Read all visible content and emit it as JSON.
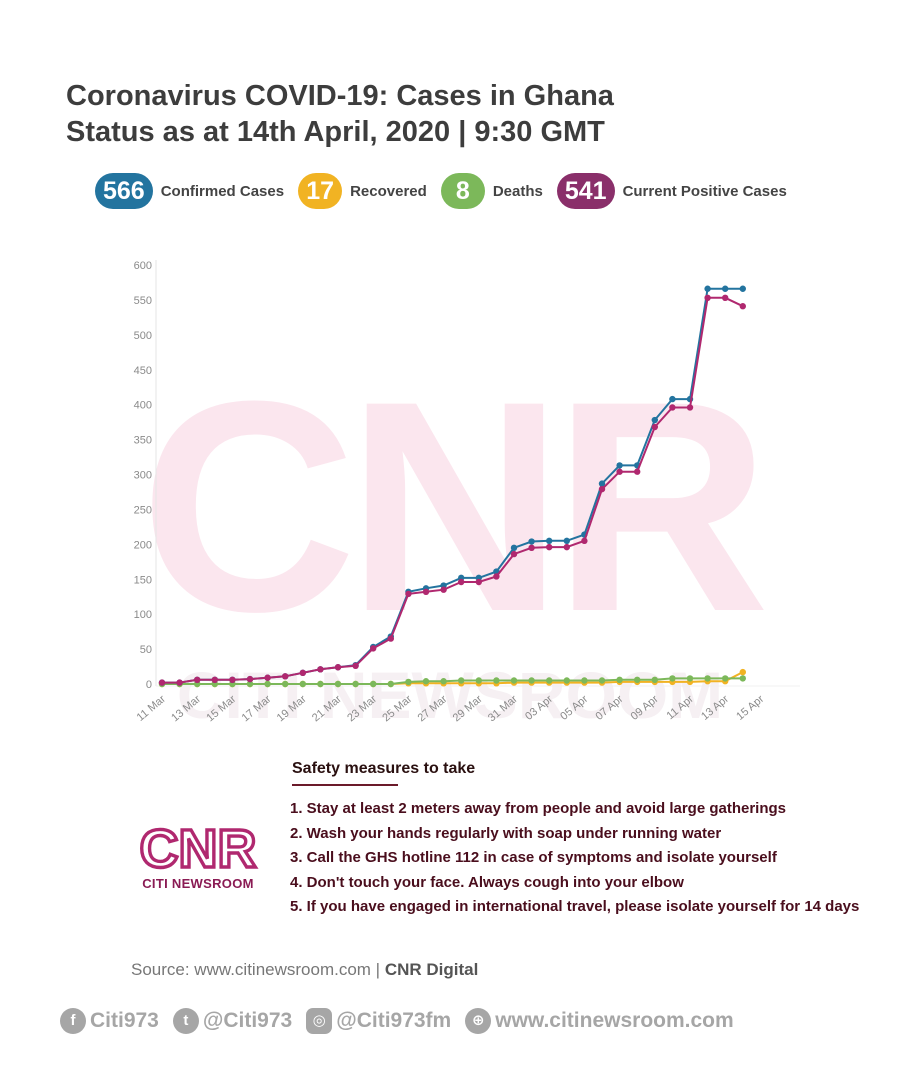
{
  "title_line1": "Coronavirus COVID-19: Cases in Ghana",
  "title_line2": "Status as at 14th April, 2020 | 9:30 GMT",
  "stats": [
    {
      "value": "566",
      "label": "Confirmed Cases",
      "color": "#23749f"
    },
    {
      "value": "17",
      "label": "Recovered",
      "color": "#f1b323"
    },
    {
      "value": "8",
      "label": "Deaths",
      "color": "#7cb85a"
    },
    {
      "value": "541",
      "label": "Current Positive Cases",
      "color": "#8a2f6a"
    }
  ],
  "chart_data": {
    "type": "line",
    "ylim": [
      0,
      600
    ],
    "yticks": [
      0,
      50,
      100,
      150,
      200,
      250,
      300,
      350,
      400,
      450,
      500,
      550,
      600
    ],
    "grid": false,
    "x_day_labels": [
      "11 Mar",
      "13 Mar",
      "15 Mar",
      "17 Mar",
      "19 Mar",
      "21 Mar",
      "23 Mar",
      "25 Mar",
      "27 Mar",
      "29 Mar",
      "31 Mar",
      "03 Apr",
      "05 Apr",
      "07 Apr",
      "09 Apr",
      "11 Apr",
      "13 Apr",
      "15 Apr"
    ],
    "x_label_index": [
      0,
      2,
      4,
      6,
      8,
      10,
      12,
      14,
      16,
      18,
      20,
      22,
      24,
      26,
      28,
      30,
      32,
      34
    ],
    "series": [
      {
        "name": "Confirmed Cases",
        "color": "#23749f",
        "x": [
          0,
          1,
          2,
          3,
          4,
          5,
          6,
          7,
          8,
          9,
          10,
          11,
          12,
          13,
          14,
          15,
          16,
          17,
          18,
          19,
          20,
          21,
          22,
          23,
          24,
          25,
          26,
          27,
          28,
          29,
          30,
          31,
          32,
          33
        ],
        "values": [
          2,
          2,
          6,
          6,
          6,
          7,
          9,
          11,
          16,
          21,
          24,
          27,
          53,
          68,
          132,
          137,
          141,
          152,
          152,
          161,
          195,
          204,
          205,
          205,
          214,
          287,
          313,
          313,
          378,
          408,
          408,
          566,
          566,
          566
        ]
      },
      {
        "name": "Current Positive Cases",
        "color": "#b0286f",
        "x": [
          0,
          1,
          2,
          3,
          4,
          5,
          6,
          7,
          8,
          9,
          10,
          11,
          12,
          13,
          14,
          15,
          16,
          17,
          18,
          19,
          20,
          21,
          22,
          23,
          24,
          25,
          26,
          27,
          28,
          29,
          30,
          31,
          32,
          33
        ],
        "values": [
          2,
          2,
          6,
          6,
          6,
          7,
          9,
          11,
          16,
          21,
          24,
          26,
          51,
          65,
          129,
          132,
          135,
          146,
          146,
          154,
          186,
          195,
          196,
          196,
          205,
          279,
          304,
          304,
          368,
          396,
          396,
          553,
          553,
          541
        ]
      },
      {
        "name": "Recovered",
        "color": "#f1b323",
        "x": [
          0,
          1,
          2,
          3,
          4,
          5,
          6,
          7,
          8,
          9,
          10,
          11,
          12,
          13,
          14,
          15,
          16,
          17,
          18,
          19,
          20,
          21,
          22,
          23,
          24,
          25,
          26,
          27,
          28,
          29,
          30,
          31,
          32,
          33
        ],
        "values": [
          0,
          0,
          0,
          0,
          0,
          0,
          0,
          0,
          0,
          0,
          0,
          0,
          0,
          0,
          1,
          1,
          1,
          1,
          1,
          1,
          2,
          2,
          2,
          2,
          2,
          2,
          3,
          3,
          3,
          3,
          3,
          4,
          4,
          17
        ]
      },
      {
        "name": "Deaths",
        "color": "#7cb85a",
        "x": [
          0,
          1,
          2,
          3,
          4,
          5,
          6,
          7,
          8,
          9,
          10,
          11,
          12,
          13,
          14,
          15,
          16,
          17,
          18,
          19,
          20,
          21,
          22,
          23,
          24,
          25,
          26,
          27,
          28,
          29,
          30,
          31,
          32,
          33
        ],
        "values": [
          0,
          0,
          0,
          0,
          0,
          0,
          0,
          0,
          0,
          0,
          0,
          0,
          0,
          0,
          3,
          4,
          4,
          5,
          5,
          5,
          5,
          5,
          5,
          5,
          5,
          5,
          6,
          6,
          6,
          8,
          8,
          8,
          8,
          8
        ]
      }
    ]
  },
  "safety": {
    "title": "Safety measures to take",
    "items": [
      "1. Stay at least 2 meters away from people and avoid large gatherings",
      "2. Wash your hands regularly with soap under running water",
      "3. Call the GHS hotline 112 in case of symptoms and isolate yourself",
      "4. Don't touch your face. Always cough into your elbow",
      "5. If you have engaged in international travel, please isolate yourself for 14 days"
    ]
  },
  "logo": {
    "mark": "CNR",
    "subtitle": "CITI NEWSROOM",
    "color": "#b0286f"
  },
  "watermark": {
    "mark": "CNR",
    "subtitle": "CITI NEWSROOM"
  },
  "source": {
    "prefix": "Source: www.citinewsroom.com | ",
    "bold": "CNR Digital"
  },
  "social": [
    {
      "icon": "facebook-icon",
      "glyph": "f",
      "text": "Citi973"
    },
    {
      "icon": "twitter-icon",
      "glyph": "t",
      "text": "@Citi973"
    },
    {
      "icon": "instagram-icon",
      "glyph": "◎",
      "text": "@Citi973fm"
    },
    {
      "icon": "globe-icon",
      "glyph": "⊕",
      "text": "www.citinewsroom.com"
    }
  ]
}
